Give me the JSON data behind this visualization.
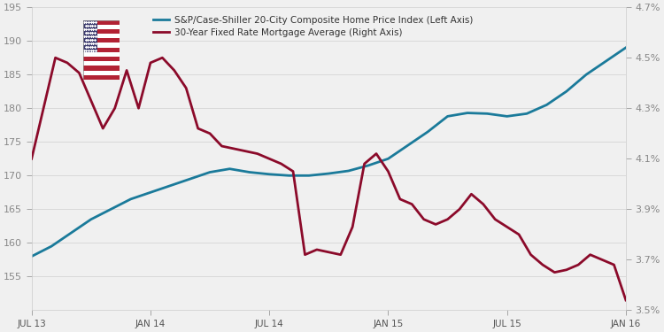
{
  "x_labels": [
    "JUL 13",
    "JAN 14",
    "JUL 14",
    "JAN 15",
    "JUL 15",
    "JAN 16"
  ],
  "left_ylim": [
    150,
    195
  ],
  "right_ylim": [
    3.5,
    4.7
  ],
  "left_yticks": [
    155,
    160,
    165,
    170,
    175,
    180,
    185,
    190,
    195
  ],
  "right_ytick_vals": [
    3.5,
    3.7,
    3.9,
    4.1,
    4.3,
    4.5,
    4.7
  ],
  "right_ytick_labels": [
    "3.5%",
    "3.7%",
    "3.9%",
    "4.1%",
    "4.3%",
    "4.5%",
    "4.7%"
  ],
  "hpi_y": [
    158,
    159.5,
    161.5,
    163.5,
    165,
    166.5,
    167.5,
    168.5,
    169.5,
    170.5,
    171,
    170.5,
    170.2,
    170,
    170,
    170.3,
    170.7,
    171.5,
    172.5,
    174.5,
    176.5,
    178.8,
    179.3,
    179.2,
    178.8,
    179.2,
    180.5,
    182.5,
    185,
    187,
    189
  ],
  "mort_y": [
    4.1,
    4.3,
    4.5,
    4.48,
    4.44,
    4.33,
    4.22,
    4.3,
    4.45,
    4.3,
    4.48,
    4.5,
    4.45,
    4.38,
    4.22,
    4.2,
    4.15,
    4.14,
    4.13,
    4.12,
    4.1,
    4.08,
    4.05,
    3.72,
    3.74,
    3.73,
    3.72,
    3.83,
    4.08,
    4.12,
    4.05,
    3.94,
    3.92,
    3.86,
    3.84,
    3.86,
    3.9,
    3.96,
    3.92,
    3.86,
    3.83,
    3.8,
    3.72,
    3.68,
    3.65,
    3.66,
    3.68,
    3.72,
    3.7,
    3.68,
    3.54
  ],
  "hpi_color": "#1a7a9a",
  "mortgage_color": "#8b0a2a",
  "bg_color": "#f0f0f0",
  "legend_label_hpi": "S&P/Case-Shiller 20-City Composite Home Price Index (Left Axis)",
  "legend_label_mortgage": "30-Year Fixed Rate Mortgage Average (Right Axis)"
}
